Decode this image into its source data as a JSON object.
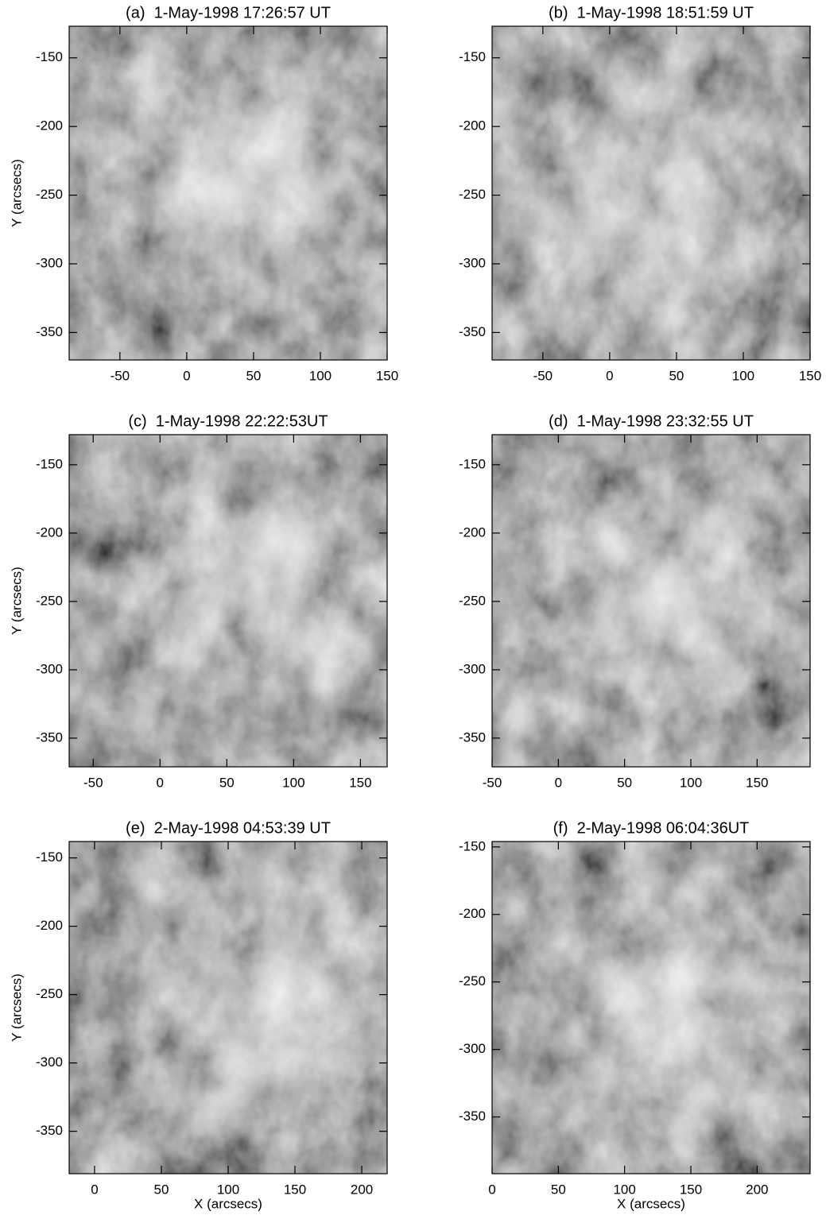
{
  "chart_data": [
    {
      "type": "image",
      "title": "(a)  1-May-1998 17:26:57 UT",
      "ylabel": "Y (arcsecs)",
      "xlim": [
        -88,
        150
      ],
      "ylim": [
        -370,
        -127
      ],
      "xticks": [
        -50,
        0,
        50,
        100,
        150
      ],
      "yticks": [
        -150,
        -200,
        -250,
        -300,
        -350
      ]
    },
    {
      "type": "image",
      "title": "(b)  1-May-1998 18:51:59 UT",
      "xlim": [
        -88,
        150
      ],
      "ylim": [
        -370,
        -127
      ],
      "xticks": [
        -50,
        0,
        50,
        100,
        150
      ],
      "yticks": [
        -150,
        -200,
        -250,
        -300,
        -350
      ]
    },
    {
      "type": "image",
      "title": "(c)  1-May-1998 22:22:53UT",
      "ylabel": "Y (arcsecs)",
      "xlim": [
        -68,
        170
      ],
      "ylim": [
        -371,
        -128
      ],
      "xticks": [
        -50,
        0,
        50,
        100,
        150
      ],
      "yticks": [
        -150,
        -200,
        -250,
        -300,
        -350
      ]
    },
    {
      "type": "image",
      "title": "(d)  1-May-1998 23:32:55 UT",
      "xlim": [
        -50,
        190
      ],
      "ylim": [
        -371,
        -128
      ],
      "xticks": [
        -50,
        0,
        50,
        100,
        150
      ],
      "yticks": [
        -150,
        -200,
        -250,
        -300,
        -350
      ]
    },
    {
      "type": "image",
      "title": "(e)  2-May-1998 04:53:39 UT",
      "ylabel": "Y (arcsecs)",
      "xlabel": "X (arcsecs)",
      "xlim": [
        -19,
        219
      ],
      "ylim": [
        -381,
        -138
      ],
      "xticks": [
        0,
        50,
        100,
        150,
        200
      ],
      "yticks": [
        -150,
        -200,
        -250,
        -300,
        -350
      ]
    },
    {
      "type": "image",
      "title": "(f)  2-May-1998 06:04:36UT",
      "xlabel": "X (arcsecs)",
      "xlim": [
        0,
        240
      ],
      "ylim": [
        -392,
        -146
      ],
      "xticks": [
        0,
        50,
        100,
        150,
        200
      ],
      "yticks": [
        -150,
        -200,
        -250,
        -300,
        -350
      ]
    }
  ]
}
